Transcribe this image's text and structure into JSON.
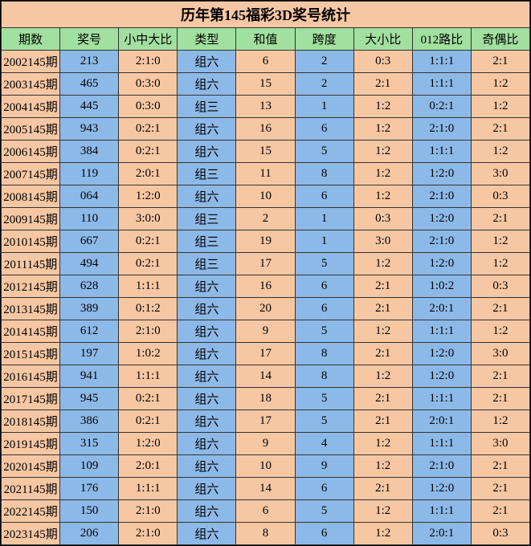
{
  "title": "历年第145福彩3D奖号统计",
  "title_bg": "#f7c7a3",
  "header_bg": "#a1e09e",
  "cell_orange": "#f7c7a3",
  "cell_blue": "#8db9e8",
  "title_fontsize": 18,
  "row_fontsize": 15,
  "columns": [
    "期数",
    "奖号",
    "小中大比",
    "类型",
    "和值",
    "跨度",
    "大小比",
    "012路比",
    "奇偶比"
  ],
  "col_classes": [
    "col0",
    "col1",
    "col2",
    "col3",
    "col4",
    "col5",
    "col6",
    "col7",
    "col8"
  ],
  "colors_by_col": [
    "#f7c7a3",
    "#8db9e8",
    "#f7c7a3",
    "#8db9e8",
    "#f7c7a3",
    "#8db9e8",
    "#f7c7a3",
    "#8db9e8",
    "#f7c7a3"
  ],
  "rows": [
    [
      "2002145期",
      "213",
      "2:1:0",
      "组六",
      "6",
      "2",
      "0:3",
      "1:1:1",
      "2:1"
    ],
    [
      "2003145期",
      "465",
      "0:3:0",
      "组六",
      "15",
      "2",
      "2:1",
      "1:1:1",
      "1:2"
    ],
    [
      "2004145期",
      "445",
      "0:3:0",
      "组三",
      "13",
      "1",
      "1:2",
      "0:2:1",
      "1:2"
    ],
    [
      "2005145期",
      "943",
      "0:2:1",
      "组六",
      "16",
      "6",
      "1:2",
      "2:1:0",
      "2:1"
    ],
    [
      "2006145期",
      "384",
      "0:2:1",
      "组六",
      "15",
      "5",
      "1:2",
      "1:1:1",
      "1:2"
    ],
    [
      "2007145期",
      "119",
      "2:0:1",
      "组三",
      "11",
      "8",
      "1:2",
      "1:2:0",
      "3:0"
    ],
    [
      "2008145期",
      "064",
      "1:2:0",
      "组六",
      "10",
      "6",
      "1:2",
      "2:1:0",
      "0:3"
    ],
    [
      "2009145期",
      "110",
      "3:0:0",
      "组三",
      "2",
      "1",
      "0:3",
      "1:2:0",
      "2:1"
    ],
    [
      "2010145期",
      "667",
      "0:2:1",
      "组三",
      "19",
      "1",
      "3:0",
      "2:1:0",
      "1:2"
    ],
    [
      "2011145期",
      "494",
      "0:2:1",
      "组三",
      "17",
      "5",
      "1:2",
      "1:2:0",
      "1:2"
    ],
    [
      "2012145期",
      "628",
      "1:1:1",
      "组六",
      "16",
      "6",
      "2:1",
      "1:0:2",
      "0:3"
    ],
    [
      "2013145期",
      "389",
      "0:1:2",
      "组六",
      "20",
      "6",
      "2:1",
      "2:0:1",
      "2:1"
    ],
    [
      "2014145期",
      "612",
      "2:1:0",
      "组六",
      "9",
      "5",
      "1:2",
      "1:1:1",
      "1:2"
    ],
    [
      "2015145期",
      "197",
      "1:0:2",
      "组六",
      "17",
      "8",
      "2:1",
      "1:2:0",
      "3:0"
    ],
    [
      "2016145期",
      "941",
      "1:1:1",
      "组六",
      "14",
      "8",
      "1:2",
      "1:2:0",
      "2:1"
    ],
    [
      "2017145期",
      "945",
      "0:2:1",
      "组六",
      "18",
      "5",
      "2:1",
      "1:1:1",
      "2:1"
    ],
    [
      "2018145期",
      "386",
      "0:2:1",
      "组六",
      "17",
      "5",
      "2:1",
      "2:0:1",
      "1:2"
    ],
    [
      "2019145期",
      "315",
      "1:2:0",
      "组六",
      "9",
      "4",
      "1:2",
      "1:1:1",
      "3:0"
    ],
    [
      "2020145期",
      "109",
      "2:0:1",
      "组六",
      "10",
      "9",
      "1:2",
      "2:1:0",
      "2:1"
    ],
    [
      "2021145期",
      "176",
      "1:1:1",
      "组六",
      "14",
      "6",
      "2:1",
      "1:2:0",
      "2:1"
    ],
    [
      "2022145期",
      "150",
      "2:1:0",
      "组六",
      "6",
      "5",
      "1:2",
      "1:1:1",
      "2:1"
    ],
    [
      "2023145期",
      "206",
      "2:1:0",
      "组六",
      "8",
      "6",
      "1:2",
      "2:0:1",
      "0:3"
    ]
  ]
}
